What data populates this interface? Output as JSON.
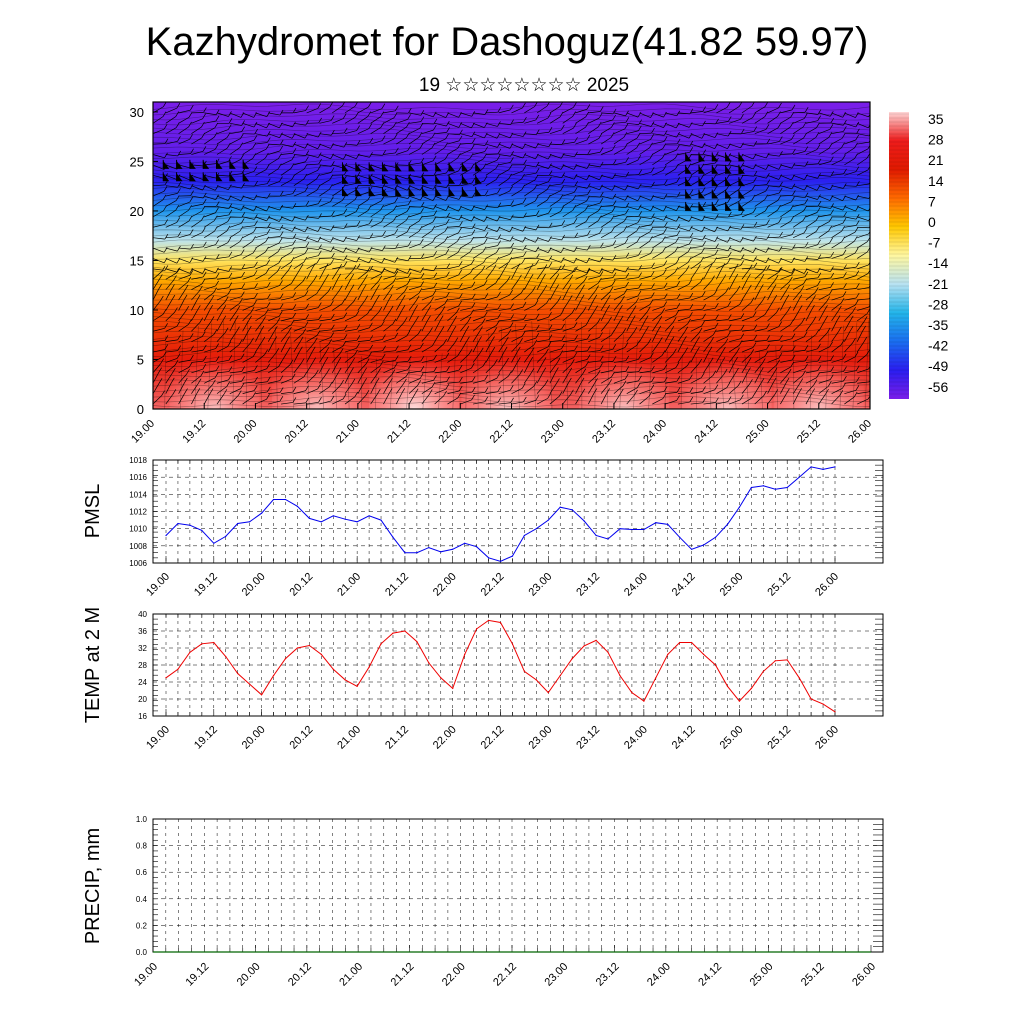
{
  "title": "Kazhydromet for Dashoguz(41.82 59.97)",
  "subtitle": "19 ☆☆☆☆☆☆☆☆ 2025",
  "time_labels": [
    "19.00",
    "19.12",
    "20.00",
    "20.12",
    "21.00",
    "21.12",
    "22.00",
    "22.12",
    "23.00",
    "23.12",
    "24.00",
    "24.12",
    "25.00",
    "25.12",
    "26.00"
  ],
  "colors": {
    "pmsl_line": "#0000ee",
    "temp_line": "#ee0000",
    "precip_line": "#006400",
    "colorbar": [
      "#ffd6d6",
      "#ee1c1c",
      "#e01a00",
      "#ff6a00",
      "#ffc800",
      "#fff7a0",
      "#b8e2f2",
      "#23b5ea",
      "#1a6ef0",
      "#2a1ef0",
      "#7a1ee8"
    ]
  },
  "chart_data": [
    {
      "type": "heatmap",
      "name": "cross-section",
      "ylim": [
        0,
        31
      ],
      "yticks": [
        "0",
        "5",
        "10",
        "15",
        "20",
        "25",
        "30"
      ],
      "colorbar_labels": [
        "35",
        "28",
        "21",
        "14",
        "7",
        "0",
        "-7",
        "-14",
        "-21",
        "-28",
        "-35",
        "-42",
        "-49",
        "-56"
      ],
      "colorbar_range": [
        -60,
        38
      ],
      "level_temps": [
        {
          "h": 0,
          "t": 32
        },
        {
          "h": 5,
          "t": 22
        },
        {
          "h": 10,
          "t": 12
        },
        {
          "h": 13,
          "t": 2
        },
        {
          "h": 15,
          "t": -7
        },
        {
          "h": 17,
          "t": -20
        },
        {
          "h": 20,
          "t": -35
        },
        {
          "h": 23,
          "t": -50
        },
        {
          "h": 26,
          "t": -57
        },
        {
          "h": 31,
          "t": -60
        }
      ]
    },
    {
      "type": "line",
      "name": "PMSL",
      "ylabel": "PMSL",
      "ylim": [
        1006,
        1018
      ],
      "yticks": [
        "1006",
        "1008",
        "1010",
        "1012",
        "1014",
        "1016",
        "1018"
      ],
      "x": [
        0,
        0.125,
        0.25,
        0.375,
        0.5,
        0.625,
        0.75,
        0.875,
        1,
        1.125,
        1.25,
        1.375,
        1.5,
        1.625,
        1.75,
        1.875,
        2,
        2.125,
        2.25,
        2.375,
        2.5,
        2.625,
        2.75,
        2.875,
        3,
        3.125,
        3.25,
        3.375,
        3.5,
        3.625,
        3.75,
        3.875,
        4,
        4.125,
        4.25,
        4.375,
        4.5,
        4.625,
        4.75,
        4.875,
        5,
        5.125,
        5.25,
        5.375,
        5.5,
        5.625,
        5.75,
        5.875,
        6,
        6.125,
        6.25,
        6.375,
        6.5,
        6.625,
        6.75,
        6.875,
        7
      ],
      "values": [
        1009.2,
        1010.6,
        1010.4,
        1009.8,
        1008.3,
        1009.1,
        1010.6,
        1010.8,
        1011.8,
        1013.4,
        1013.4,
        1012.6,
        1011.2,
        1010.8,
        1011.5,
        1011.1,
        1010.8,
        1011.5,
        1011.0,
        1009.0,
        1007.2,
        1007.2,
        1007.8,
        1007.3,
        1007.6,
        1008.3,
        1007.9,
        1006.6,
        1006.2,
        1006.8,
        1009.2,
        1010.0,
        1011.0,
        1012.5,
        1012.2,
        1010.9,
        1009.2,
        1008.8,
        1010.0,
        1009.9,
        1009.9,
        1010.7,
        1010.5,
        1009.0,
        1007.6,
        1008.1,
        1009.0,
        1010.5,
        1012.5,
        1014.8,
        1015.0,
        1014.6,
        1014.8,
        1016.0,
        1017.2,
        1016.9,
        1017.2
      ]
    },
    {
      "type": "line",
      "name": "TEMP at 2 M",
      "ylabel": "TEMP at 2 M",
      "ylim": [
        16,
        40
      ],
      "yticks": [
        "16",
        "20",
        "24",
        "28",
        "32",
        "36",
        "40"
      ],
      "x": [
        0,
        0.125,
        0.25,
        0.375,
        0.5,
        0.625,
        0.75,
        0.875,
        1,
        1.125,
        1.25,
        1.375,
        1.5,
        1.625,
        1.75,
        1.875,
        2,
        2.125,
        2.25,
        2.375,
        2.5,
        2.625,
        2.75,
        2.875,
        3,
        3.125,
        3.25,
        3.375,
        3.5,
        3.625,
        3.75,
        3.875,
        4,
        4.125,
        4.25,
        4.375,
        4.5,
        4.625,
        4.75,
        4.875,
        5,
        5.125,
        5.25,
        5.375,
        5.5,
        5.625,
        5.75,
        5.875,
        6,
        6.125,
        6.25,
        6.375,
        6.5,
        6.625,
        6.75,
        6.875,
        7
      ],
      "values": [
        25.0,
        27.0,
        31.0,
        33.0,
        33.3,
        30.0,
        26.0,
        23.5,
        21.0,
        25.5,
        29.5,
        32.0,
        32.6,
        30.5,
        27.0,
        24.5,
        23.0,
        27.5,
        33.0,
        35.5,
        36.0,
        33.5,
        28.5,
        25.0,
        22.5,
        30.5,
        36.5,
        38.5,
        38.0,
        33.0,
        26.5,
        24.5,
        21.5,
        25.5,
        29.5,
        32.5,
        33.8,
        31.0,
        25.5,
        21.5,
        19.5,
        25.0,
        30.5,
        33.3,
        33.3,
        30.5,
        28.0,
        23.0,
        19.5,
        22.5,
        26.5,
        29.0,
        29.2,
        25.0,
        20.0,
        18.8,
        17.0
      ]
    },
    {
      "type": "line",
      "name": "PRECIP",
      "ylabel": "PRECIP, mm",
      "ylim": [
        0,
        1
      ],
      "yticks": [
        "0.0",
        "0.2",
        "0.4",
        "0.6",
        "0.8",
        "1.0"
      ],
      "x": [
        0,
        7
      ],
      "values": [
        0,
        0
      ]
    }
  ]
}
